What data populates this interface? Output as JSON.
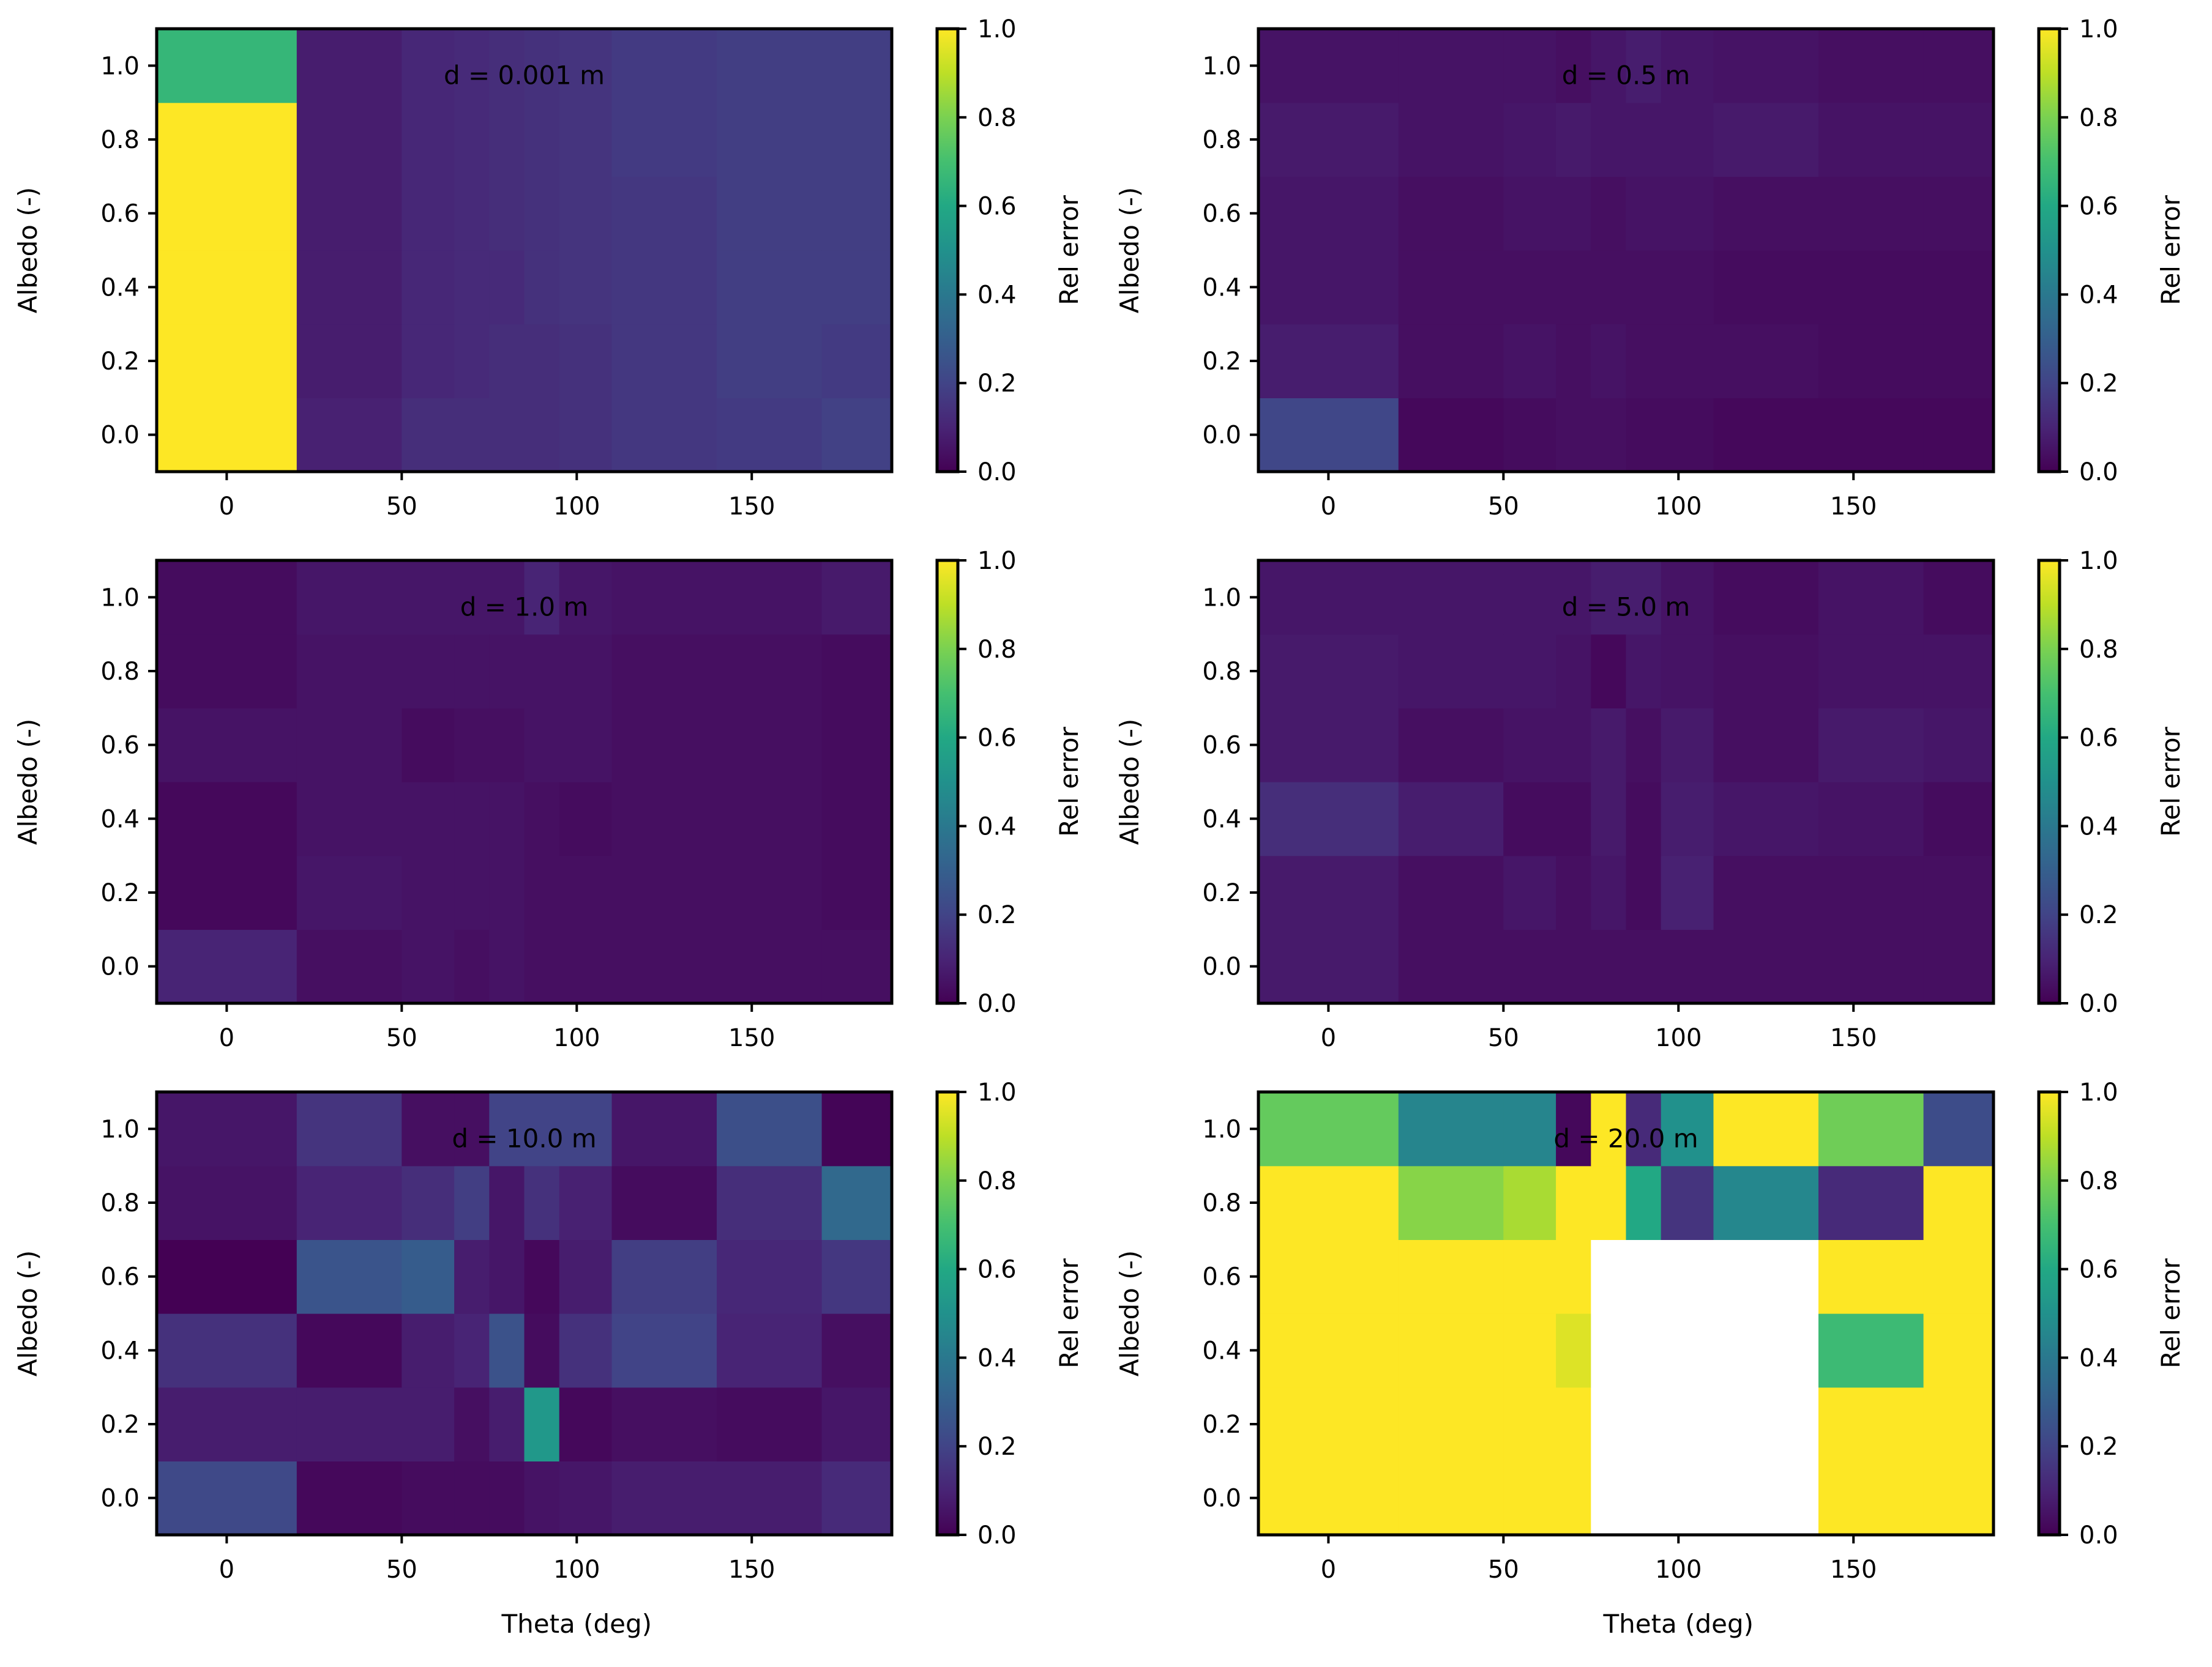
{
  "chart_data": {
    "type": "heatmap",
    "figure": "Relative error heatmaps (6 panels)",
    "grid_layout": "3 rows x 2 columns",
    "x_edges": [
      -20,
      20,
      50,
      65,
      75,
      85,
      95,
      110,
      140,
      170,
      190
    ],
    "y_edges": [
      -0.1,
      0.1,
      0.3,
      0.5,
      0.7,
      0.9,
      1.1
    ],
    "xlim": [
      -20,
      190
    ],
    "ylim": [
      -0.1,
      1.1
    ],
    "xticks": [
      0,
      50,
      100,
      150
    ],
    "xtick_labels": [
      "0",
      "50",
      "100",
      "150"
    ],
    "yticks": [
      0.0,
      0.2,
      0.4,
      0.6,
      0.8,
      1.0
    ],
    "ytick_labels": [
      "0.0",
      "0.2",
      "0.4",
      "0.6",
      "0.8",
      "1.0"
    ],
    "xlabel": "Theta (deg)",
    "ylabel": "Albedo (-)",
    "colorbar": {
      "label": "Rel error",
      "colormap": "viridis",
      "vmin": 0.0,
      "vmax": 1.0,
      "ticks": [
        0.0,
        0.2,
        0.4,
        0.6,
        0.8,
        1.0
      ],
      "tick_labels": [
        "0.0",
        "0.2",
        "0.4",
        "0.6",
        "0.8",
        "1.0"
      ]
    },
    "panels": [
      {
        "annotation": "d = 0.001 m",
        "values_note": "rows ordered from albedo 0.0 (bottom) to 1.0 (top); columns follow x_edges",
        "values": [
          [
            1.0,
            0.09,
            0.13,
            0.13,
            0.13,
            0.13,
            0.14,
            0.16,
            0.17,
            0.19
          ],
          [
            1.0,
            0.08,
            0.11,
            0.12,
            0.13,
            0.13,
            0.14,
            0.16,
            0.18,
            0.17
          ],
          [
            1.0,
            0.08,
            0.11,
            0.12,
            0.12,
            0.14,
            0.15,
            0.16,
            0.18,
            0.18
          ],
          [
            1.0,
            0.08,
            0.11,
            0.12,
            0.13,
            0.14,
            0.15,
            0.16,
            0.18,
            0.18
          ],
          [
            1.0,
            0.08,
            0.11,
            0.12,
            0.13,
            0.14,
            0.15,
            0.17,
            0.18,
            0.18
          ],
          [
            0.66,
            0.08,
            0.11,
            0.12,
            0.13,
            0.14,
            0.15,
            0.17,
            0.18,
            0.18
          ]
        ]
      },
      {
        "annotation": "d = 0.5 m",
        "values": [
          [
            0.21,
            0.02,
            0.03,
            0.04,
            0.04,
            0.03,
            0.03,
            0.02,
            0.02,
            0.02
          ],
          [
            0.08,
            0.04,
            0.05,
            0.04,
            0.05,
            0.04,
            0.04,
            0.04,
            0.03,
            0.03
          ],
          [
            0.06,
            0.04,
            0.04,
            0.04,
            0.04,
            0.04,
            0.04,
            0.03,
            0.03,
            0.03
          ],
          [
            0.06,
            0.04,
            0.05,
            0.05,
            0.04,
            0.05,
            0.05,
            0.04,
            0.04,
            0.04
          ],
          [
            0.07,
            0.05,
            0.06,
            0.07,
            0.06,
            0.06,
            0.06,
            0.07,
            0.05,
            0.05
          ],
          [
            0.05,
            0.05,
            0.05,
            0.04,
            0.06,
            0.08,
            0.06,
            0.05,
            0.04,
            0.04
          ]
        ]
      },
      {
        "annotation": "d = 1.0 m",
        "values": [
          [
            0.1,
            0.04,
            0.05,
            0.04,
            0.05,
            0.04,
            0.04,
            0.04,
            0.04,
            0.04
          ],
          [
            0.02,
            0.06,
            0.05,
            0.05,
            0.05,
            0.04,
            0.04,
            0.04,
            0.04,
            0.03
          ],
          [
            0.02,
            0.05,
            0.05,
            0.05,
            0.05,
            0.04,
            0.03,
            0.04,
            0.04,
            0.03
          ],
          [
            0.05,
            0.05,
            0.03,
            0.04,
            0.04,
            0.05,
            0.05,
            0.04,
            0.04,
            0.03
          ],
          [
            0.03,
            0.05,
            0.05,
            0.05,
            0.05,
            0.05,
            0.05,
            0.04,
            0.04,
            0.03
          ],
          [
            0.03,
            0.06,
            0.06,
            0.06,
            0.06,
            0.1,
            0.06,
            0.05,
            0.05,
            0.07
          ]
        ]
      },
      {
        "annotation": "d = 5.0 m",
        "values": [
          [
            0.07,
            0.04,
            0.04,
            0.04,
            0.04,
            0.04,
            0.04,
            0.04,
            0.04,
            0.04
          ],
          [
            0.07,
            0.04,
            0.06,
            0.04,
            0.06,
            0.03,
            0.09,
            0.04,
            0.04,
            0.04
          ],
          [
            0.13,
            0.08,
            0.03,
            0.03,
            0.07,
            0.03,
            0.08,
            0.06,
            0.05,
            0.03
          ],
          [
            0.07,
            0.04,
            0.05,
            0.05,
            0.07,
            0.04,
            0.07,
            0.04,
            0.07,
            0.06
          ],
          [
            0.07,
            0.06,
            0.06,
            0.05,
            0.02,
            0.06,
            0.05,
            0.04,
            0.05,
            0.05
          ],
          [
            0.06,
            0.06,
            0.06,
            0.06,
            0.08,
            0.08,
            0.05,
            0.03,
            0.05,
            0.03
          ]
        ]
      },
      {
        "annotation": "d = 10.0 m",
        "values": [
          [
            0.22,
            0.02,
            0.03,
            0.03,
            0.03,
            0.05,
            0.06,
            0.08,
            0.08,
            0.12
          ],
          [
            0.08,
            0.08,
            0.08,
            0.04,
            0.08,
            0.53,
            0.02,
            0.04,
            0.03,
            0.06
          ],
          [
            0.14,
            0.02,
            0.08,
            0.1,
            0.25,
            0.03,
            0.14,
            0.2,
            0.1,
            0.04
          ],
          [
            0.0,
            0.26,
            0.29,
            0.08,
            0.06,
            0.02,
            0.08,
            0.18,
            0.11,
            0.16
          ],
          [
            0.05,
            0.1,
            0.13,
            0.18,
            0.06,
            0.14,
            0.09,
            0.03,
            0.13,
            0.34
          ],
          [
            0.06,
            0.15,
            0.04,
            0.04,
            0.2,
            0.2,
            0.2,
            0.06,
            0.24,
            0.01
          ]
        ]
      },
      {
        "annotation": "d = 20.0 m",
        "values_note": "null = missing (rendered white)",
        "values": [
          [
            1.0,
            1.0,
            1.0,
            1.0,
            null,
            null,
            null,
            null,
            1.0,
            1.0
          ],
          [
            1.0,
            1.0,
            1.0,
            1.0,
            null,
            null,
            null,
            null,
            1.0,
            1.0
          ],
          [
            1.0,
            1.0,
            1.0,
            0.95,
            null,
            null,
            null,
            null,
            0.68,
            1.0
          ],
          [
            1.0,
            1.0,
            1.0,
            1.0,
            null,
            null,
            null,
            null,
            1.0,
            1.0
          ],
          [
            1.0,
            0.82,
            0.87,
            1.0,
            1.0,
            0.6,
            0.15,
            0.46,
            0.12,
            1.0
          ],
          [
            0.76,
            0.45,
            0.45,
            0.02,
            1.0,
            0.12,
            0.5,
            1.0,
            0.78,
            0.23
          ]
        ]
      }
    ]
  }
}
